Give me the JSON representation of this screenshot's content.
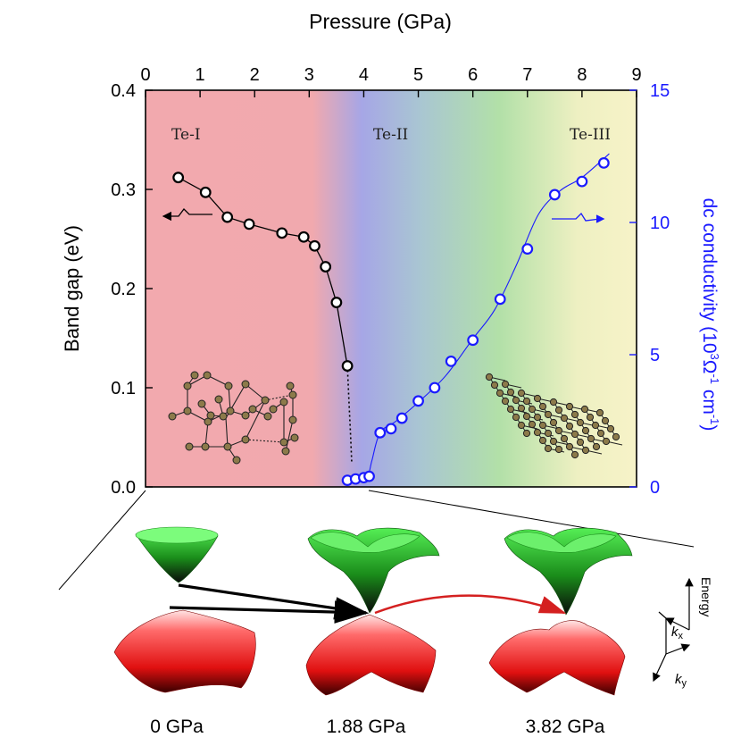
{
  "chart_data": {
    "type": "scatter",
    "title": "",
    "xlabel": "Pressure (GPa)",
    "xlim": [
      0,
      9
    ],
    "xticks": [
      "0",
      "1",
      "2",
      "3",
      "4",
      "5",
      "6",
      "7",
      "8",
      "9"
    ],
    "ylabel_left": "Band gap (eV)",
    "ylim_left": [
      0.0,
      0.4
    ],
    "yticks_left": [
      "0.0",
      "0.1",
      "0.2",
      "0.3",
      "0.4"
    ],
    "ylabel_right_main": "dc conductivity (10",
    "ylabel_right_exp1": "3",
    "ylabel_right_mid": "Ω",
    "ylabel_right_exp2": "-1",
    "ylabel_right_tail": " cm",
    "ylabel_right_exp3": "-1",
    "ylabel_right_close": ")",
    "ylim_right": [
      0,
      15
    ],
    "yticks_right": [
      "0",
      "5",
      "10",
      "15"
    ],
    "phases": [
      "Te-I",
      "Te-II",
      "Te-III"
    ],
    "series": [
      {
        "name": "Band gap",
        "axis": "left",
        "color": "#000000",
        "x": [
          0.6,
          1.1,
          1.5,
          1.9,
          2.5,
          2.9,
          3.1,
          3.3,
          3.5,
          3.7
        ],
        "y": [
          0.312,
          0.297,
          0.272,
          0.265,
          0.256,
          0.252,
          0.243,
          0.222,
          0.186,
          0.122
        ]
      },
      {
        "name": "dc conductivity",
        "axis": "right",
        "color": "#1a1aff",
        "x": [
          3.7,
          3.85,
          4.0,
          4.1,
          4.3,
          4.5,
          4.7,
          5.0,
          5.3,
          5.6,
          6.0,
          6.5,
          7.0,
          7.5,
          8.0,
          8.4
        ],
        "y": [
          0.25,
          0.3,
          0.35,
          0.4,
          2.05,
          2.2,
          2.6,
          3.25,
          3.75,
          4.75,
          5.55,
          7.1,
          9.0,
          11.05,
          11.55,
          12.25
        ]
      }
    ],
    "trend_left": {
      "x": [
        0.6,
        1.1,
        1.5,
        1.9,
        2.5,
        2.9,
        3.1,
        3.3,
        3.5,
        3.7
      ],
      "y": [
        0.312,
        0.297,
        0.272,
        0.265,
        0.256,
        0.252,
        0.243,
        0.222,
        0.186,
        0.122
      ],
      "dashed_x": [
        3.7,
        3.73,
        3.76,
        3.78
      ],
      "dashed_y": [
        0.122,
        0.085,
        0.05,
        0.024
      ]
    },
    "trend_right": {
      "x": [
        3.72,
        3.95,
        4.08,
        4.15,
        4.3,
        4.6,
        5.0,
        5.5,
        6.0,
        6.4,
        6.8,
        7.2,
        7.6,
        8.0,
        8.5
      ],
      "y": [
        0.22,
        0.3,
        0.45,
        1.0,
        2.05,
        2.5,
        3.2,
        4.2,
        5.6,
        6.7,
        8.4,
        10.3,
        11.2,
        11.7,
        12.6
      ]
    },
    "bottom_labels": [
      "0 GPa",
      "1.88 GPa",
      "3.82 GPa"
    ],
    "axis_labels_3d": {
      "energy": "Energy",
      "kx": "k",
      "kx_sub": "x",
      "ky": "k",
      "ky_sub": "y"
    }
  }
}
